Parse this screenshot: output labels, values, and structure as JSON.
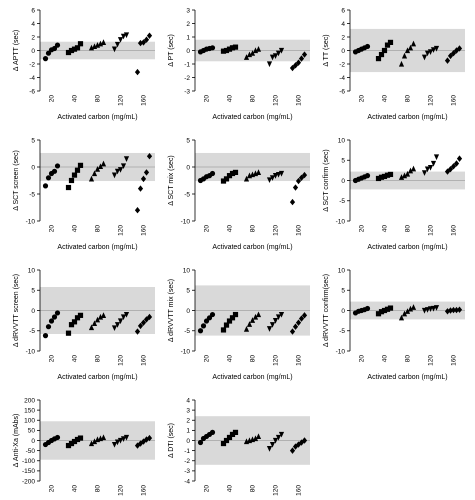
{
  "colors": {
    "band": "#d9d9d9",
    "axis": "#000000",
    "marker": "#000000"
  },
  "chart_data": [
    {
      "type": "scatter",
      "ylabel": "Δ APTT (sec)",
      "xlabel": "Activated carbon (mg/mL)",
      "categories": [
        "20",
        "40",
        "80",
        "120",
        "160"
      ],
      "marker": "diamond",
      "ylim": [
        -6,
        6
      ],
      "yticks": [
        -6,
        -4,
        -2,
        0,
        2,
        4,
        6
      ],
      "band": [
        -1.3,
        1.3
      ],
      "series": [
        [
          -1.2,
          -0.4,
          0.1,
          0.3,
          0.8
        ],
        [
          -0.3,
          0,
          0.2,
          0.4,
          1
        ],
        [
          0.4,
          0.6,
          0.8,
          1,
          1.2
        ],
        [
          0.2,
          0.9,
          1.6,
          2.1,
          2.3
        ],
        [
          -3.2,
          1.1,
          1.2,
          1.6,
          2.2
        ]
      ]
    },
    {
      "type": "scatter",
      "ylabel": "Δ PT (sec)",
      "xlabel": "Activated carbon (mg/mL)",
      "categories": [
        "20",
        "40",
        "80",
        "120",
        "160"
      ],
      "marker": "diamond",
      "ylim": [
        -3,
        3
      ],
      "yticks": [
        -3,
        -2,
        -1,
        0,
        1,
        2,
        3
      ],
      "band": [
        -0.8,
        0.8
      ],
      "series": [
        [
          -0.1,
          0,
          0.1,
          0.15,
          0.2
        ],
        [
          -0.05,
          0,
          0.1,
          0.2,
          0.25
        ],
        [
          -0.5,
          -0.3,
          -0.2,
          0,
          0.1
        ],
        [
          -1,
          -0.5,
          -0.4,
          -0.2,
          0
        ],
        [
          -1.3,
          -1.1,
          -0.9,
          -0.6,
          -0.3
        ]
      ]
    },
    {
      "type": "scatter",
      "ylabel": "Δ TT (sec)",
      "xlabel": "Activated carbon (mg/mL)",
      "categories": [
        "20",
        "40",
        "80",
        "120",
        "160"
      ],
      "marker": "diamond",
      "ylim": [
        -6,
        6
      ],
      "yticks": [
        -6,
        -4,
        -2,
        0,
        2,
        4,
        6
      ],
      "band": [
        -3.2,
        3.2
      ],
      "series": [
        [
          -0.2,
          0,
          0.2,
          0.4,
          0.6
        ],
        [
          -1.2,
          -0.6,
          0,
          0.8,
          1.2
        ],
        [
          -2,
          -0.8,
          0,
          0.4,
          1
        ],
        [
          -1,
          -0.4,
          -0.2,
          0.1,
          0.3
        ],
        [
          -1.5,
          -0.8,
          -0.4,
          0,
          0.3
        ]
      ]
    },
    {
      "type": "scatter",
      "ylabel": "Δ SCT screen (sec)",
      "xlabel": "Activated carbon (mg/mL)",
      "categories": [
        "20",
        "40",
        "80",
        "120",
        "160"
      ],
      "marker": "diamond",
      "ylim": [
        -10,
        5
      ],
      "yticks": [
        -10,
        -5,
        0,
        5
      ],
      "band": [
        -2.6,
        2.6
      ],
      "series": [
        [
          -3.5,
          -2,
          -1.2,
          -0.8,
          0.2
        ],
        [
          -3.8,
          -2.5,
          -1.5,
          -0.6,
          0.3
        ],
        [
          -2.2,
          -1.2,
          -0.4,
          0.1,
          0.6
        ],
        [
          -1.5,
          -0.8,
          -0.5,
          0.2,
          1.5
        ],
        [
          -8,
          -4,
          -2.2,
          -1,
          2
        ]
      ]
    },
    {
      "type": "scatter",
      "ylabel": "Δ SCT mix (sec)",
      "xlabel": "Activated carbon (mg/mL)",
      "categories": [
        "20",
        "40",
        "80",
        "120",
        "160"
      ],
      "marker": "diamond",
      "ylim": [
        -10,
        5
      ],
      "yticks": [
        -10,
        -5,
        0,
        5
      ],
      "band": [
        -2.6,
        2.6
      ],
      "series": [
        [
          -2.5,
          -2.2,
          -1.8,
          -1.6,
          -1.2
        ],
        [
          -2.6,
          -2.2,
          -1.6,
          -1.2,
          -1
        ],
        [
          -2.2,
          -1.6,
          -1.4,
          -1.2,
          -1
        ],
        [
          -2.4,
          -2,
          -1.6,
          -1.4,
          -1.2
        ],
        [
          -6.5,
          -3.8,
          -2.6,
          -2,
          -1.5
        ]
      ]
    },
    {
      "type": "scatter",
      "ylabel": "Δ SCT confirm (sec)",
      "xlabel": "Activated carbon (mg/mL)",
      "categories": [
        "20",
        "40",
        "80",
        "120",
        "160"
      ],
      "marker": "diamond",
      "ylim": [
        -10,
        10
      ],
      "yticks": [
        -10,
        -5,
        0,
        5,
        10
      ],
      "band": [
        -2.2,
        2.2
      ],
      "series": [
        [
          0,
          0.3,
          0.6,
          0.9,
          1.2
        ],
        [
          0.5,
          0.8,
          1,
          1.3,
          1.5
        ],
        [
          0.8,
          1.2,
          1.6,
          2.4,
          2.9
        ],
        [
          1.9,
          2.8,
          3.2,
          4.2,
          5.8
        ],
        [
          2.2,
          2.8,
          3.5,
          4.2,
          5.4
        ]
      ]
    },
    {
      "type": "scatter",
      "ylabel": "Δ dRVVTT screen (sec)",
      "xlabel": "Activated carbon (mg/mL)",
      "categories": [
        "20",
        "40",
        "80",
        "120",
        "160"
      ],
      "marker": "diamond",
      "ylim": [
        -10,
        10
      ],
      "yticks": [
        -10,
        -5,
        0,
        5,
        10
      ],
      "band": [
        -5.8,
        5.8
      ],
      "series": [
        [
          -6.2,
          -4,
          -2.6,
          -1.6,
          -0.6
        ],
        [
          -5.6,
          -3.5,
          -2.8,
          -1.8,
          -1.2
        ],
        [
          -4.2,
          -3.2,
          -2.3,
          -1.6,
          -1.2
        ],
        [
          -4.3,
          -3.5,
          -2.6,
          -1.6,
          -1
        ],
        [
          -5.2,
          -3.8,
          -3,
          -2.2,
          -1.6
        ]
      ]
    },
    {
      "type": "scatter",
      "ylabel": "Δ dRVVTT mix (sec)",
      "xlabel": "Activated carbon (mg/mL)",
      "categories": [
        "20",
        "40",
        "80",
        "120",
        "160"
      ],
      "marker": "diamond",
      "ylim": [
        -10,
        10
      ],
      "yticks": [
        -10,
        -5,
        0,
        5,
        10
      ],
      "band": [
        -6.2,
        6.2
      ],
      "series": [
        [
          -5,
          -3.8,
          -2.6,
          -1.8,
          -1
        ],
        [
          -4.8,
          -3.6,
          -2.6,
          -1.8,
          -1
        ],
        [
          -4.6,
          -3.4,
          -2.4,
          -1.6,
          -1
        ],
        [
          -4.5,
          -3.5,
          -2.5,
          -1.6,
          -1
        ],
        [
          -5.2,
          -4,
          -3,
          -2,
          -1.2
        ]
      ]
    },
    {
      "type": "scatter",
      "ylabel": "Δ dRVVTT confirm(sec)",
      "xlabel": "Activated carbon (mg/mL)",
      "categories": [
        "20",
        "40",
        "80",
        "120",
        "160"
      ],
      "marker": "diamond",
      "ylim": [
        -10,
        10
      ],
      "yticks": [
        -10,
        -5,
        0,
        5,
        10
      ],
      "band": [
        -2.2,
        2.2
      ],
      "series": [
        [
          -0.6,
          -0.2,
          0,
          0.2,
          0.5
        ],
        [
          -0.8,
          -0.3,
          0,
          0.3,
          0.6
        ],
        [
          -1.8,
          -0.8,
          -0.2,
          0.4,
          0.8
        ],
        [
          0,
          0.2,
          0.4,
          0.5,
          0.7
        ],
        [
          -0.2,
          0,
          0.1,
          0.1,
          0.2
        ]
      ]
    },
    {
      "type": "scatter",
      "ylabel": "Δ Anti-Xa (mAbs)",
      "xlabel": "Activated carbon (mg/mL)",
      "categories": [
        "20",
        "40",
        "80",
        "120",
        "160"
      ],
      "marker": "diamond",
      "ylim": [
        -200,
        200
      ],
      "yticks": [
        -200,
        -150,
        -100,
        -50,
        0,
        50,
        100,
        150,
        200
      ],
      "band": [
        -95,
        95
      ],
      "series": [
        [
          -20,
          -10,
          0,
          8,
          15
        ],
        [
          -25,
          -15,
          -5,
          5,
          12
        ],
        [
          -15,
          -5,
          5,
          10,
          15
        ],
        [
          -20,
          -8,
          0,
          8,
          15
        ],
        [
          -25,
          -15,
          -5,
          5,
          12
        ]
      ]
    },
    {
      "type": "scatter",
      "ylabel": "Δ DTI (sec)",
      "xlabel": "Activated carbon (mg/mL)",
      "categories": [
        "20",
        "40",
        "80",
        "120",
        "160"
      ],
      "marker": "diamond",
      "ylim": [
        -4,
        4
      ],
      "yticks": [
        -4,
        -3,
        -2,
        -1,
        0,
        1,
        2,
        3,
        4
      ],
      "band": [
        -2.4,
        2.4
      ],
      "series": [
        [
          -0.2,
          0.2,
          0.4,
          0.6,
          0.8
        ],
        [
          -0.3,
          0,
          0.3,
          0.6,
          0.8
        ],
        [
          -0.1,
          0,
          0.1,
          0.2,
          0.4
        ],
        [
          -0.8,
          -0.4,
          0,
          0.3,
          0.6
        ],
        [
          -1,
          -0.6,
          -0.4,
          -0.2,
          0
        ]
      ]
    }
  ]
}
